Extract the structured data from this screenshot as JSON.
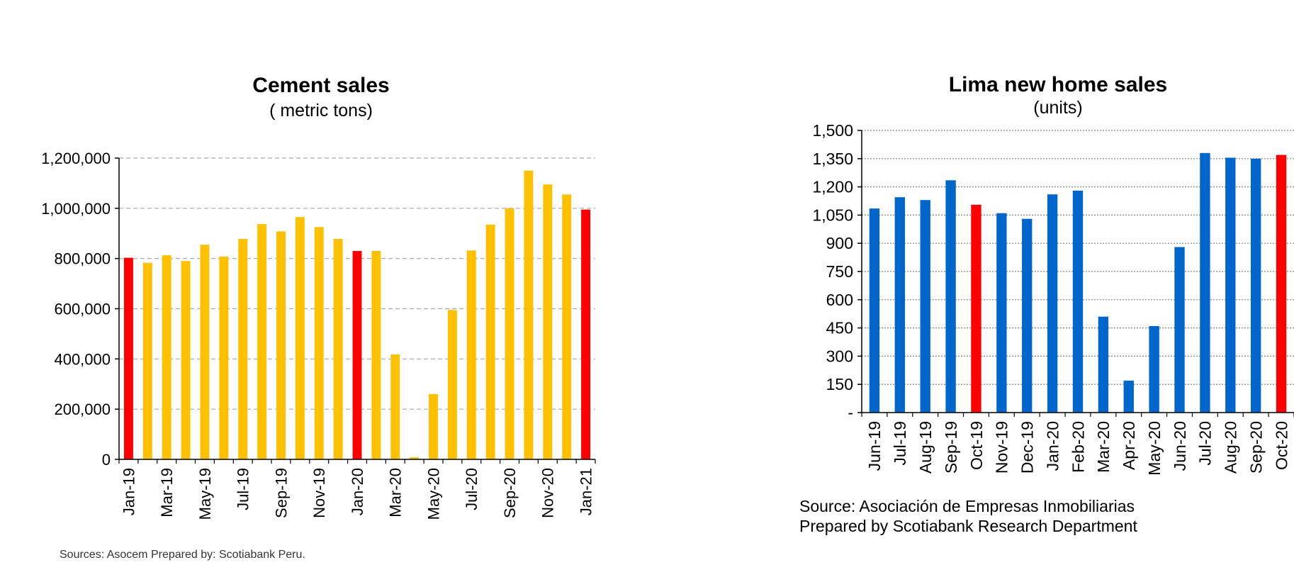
{
  "cement": {
    "source": "Sources: Asocem  Prepared by: Scotiabank Peru."
  },
  "homes": {
    "source_line1": "Source: Asociación de Empresas Inmobiliarias",
    "source_line2": "Prepared by Scotiabank Research Department"
  },
  "chart_data": [
    {
      "type": "bar",
      "title": "Cement sales",
      "subtitle": "( metric tons)",
      "xlabel": "",
      "ylabel": "",
      "ylim": [
        0,
        1200000
      ],
      "yticks": [
        0,
        200000,
        400000,
        600000,
        800000,
        1000000,
        1200000
      ],
      "ytick_labels": [
        "0",
        "200,000",
        "400,000",
        "600,000",
        "800,000",
        "1,000,000",
        "1,200,000"
      ],
      "grid": true,
      "categories": [
        "Jan-19",
        "Feb-19",
        "Mar-19",
        "Apr-19",
        "May-19",
        "Jun-19",
        "Jul-19",
        "Aug-19",
        "Sep-19",
        "Oct-19",
        "Nov-19",
        "Dec-19",
        "Jan-20",
        "Feb-20",
        "Mar-20",
        "Apr-20",
        "May-20",
        "Jun-20",
        "Jul-20",
        "Aug-20",
        "Sep-20",
        "Oct-20",
        "Nov-20",
        "Dec-20",
        "Jan-21"
      ],
      "tick_labels_shown": [
        "Jan-19",
        "Mar-19",
        "May-19",
        "Jul-19",
        "Sep-19",
        "Nov-19",
        "Jan-20",
        "Mar-20",
        "May-20",
        "Jul-20",
        "Sep-20",
        "Nov-20",
        "Jan-21"
      ],
      "values": [
        803000,
        783000,
        813000,
        790000,
        855000,
        808000,
        878000,
        937000,
        908000,
        965000,
        925000,
        878000,
        830000,
        830000,
        418000,
        8000,
        260000,
        595000,
        832000,
        935000,
        1000000,
        1150000,
        1095000,
        1055000,
        995000
      ],
      "highlight_indices": [
        0,
        12,
        24
      ],
      "colors": {
        "bar": "#FFC000",
        "highlight": "#FF0000",
        "grid": "#A6A6A6"
      }
    },
    {
      "type": "bar",
      "title": "Lima new home sales",
      "subtitle": "(units)",
      "xlabel": "",
      "ylabel": "",
      "ylim": [
        0,
        1500
      ],
      "yticks": [
        0,
        150,
        300,
        450,
        600,
        750,
        900,
        1050,
        1200,
        1350,
        1500
      ],
      "ytick_labels": [
        "-",
        "150",
        "300",
        "450",
        "600",
        "750",
        "900",
        "1,050",
        "1,200",
        "1,350",
        "1,500"
      ],
      "grid": true,
      "categories": [
        "Jun-19",
        "Jul-19",
        "Aug-19",
        "Sep-19",
        "Oct-19",
        "Nov-19",
        "Dec-19",
        "Jan-20",
        "Feb-20",
        "Mar-20",
        "Apr-20",
        "May-20",
        "Jun-20",
        "Jul-20",
        "Aug-20",
        "Sep-20",
        "Oct-20"
      ],
      "values": [
        1085,
        1145,
        1130,
        1235,
        1105,
        1060,
        1030,
        1160,
        1180,
        510,
        170,
        460,
        880,
        1380,
        1355,
        1350,
        1370
      ],
      "highlight_indices": [
        4,
        16
      ],
      "colors": {
        "bar": "#0066CC",
        "highlight": "#FF0000",
        "grid": "#808080"
      }
    }
  ]
}
